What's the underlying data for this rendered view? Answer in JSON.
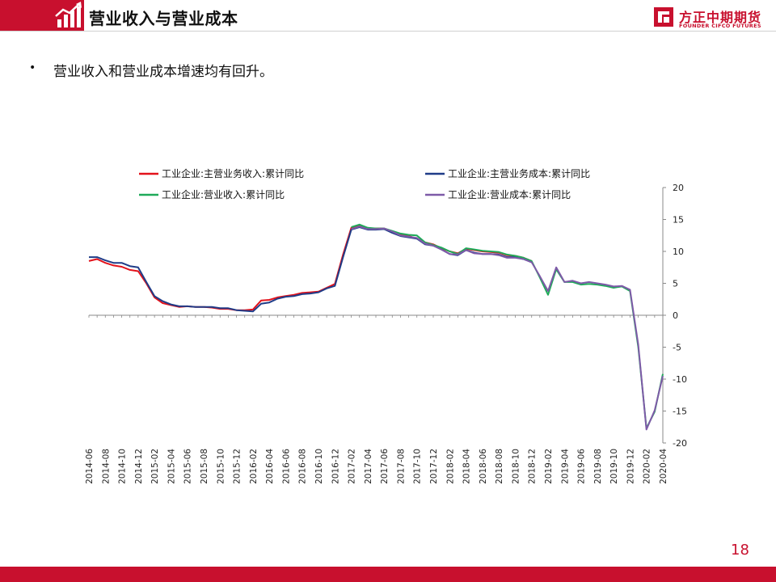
{
  "header": {
    "title": "营业收入与营业成本",
    "logo_cn": "方正中期期货",
    "logo_en": "FOUNDER CIFCO FUTURES"
  },
  "bullet": {
    "text": "营业收入和营业成本增速均有回升。"
  },
  "page_number": "18",
  "colors": {
    "brand_red": "#c8102e",
    "series_main_revenue": "#e3121b",
    "series_main_cost": "#1f3c88",
    "series_revenue": "#1faa59",
    "series_cost": "#7e5aa8"
  },
  "chart_data": {
    "type": "line",
    "title": "",
    "xlabel": "",
    "ylabel": "",
    "ylim": [
      -20,
      20
    ],
    "yticks": [
      20,
      15,
      10,
      5,
      0,
      -5,
      -10,
      -15,
      -20
    ],
    "y_axis_side": "right",
    "grid": false,
    "legend": "top",
    "x": [
      "2014-06",
      "2014-07",
      "2014-08",
      "2014-09",
      "2014-10",
      "2014-11",
      "2014-12",
      "2015-01",
      "2015-02",
      "2015-03",
      "2015-04",
      "2015-05",
      "2015-06",
      "2015-07",
      "2015-08",
      "2015-09",
      "2015-10",
      "2015-11",
      "2015-12",
      "2016-01",
      "2016-02",
      "2016-03",
      "2016-04",
      "2016-05",
      "2016-06",
      "2016-07",
      "2016-08",
      "2016-09",
      "2016-10",
      "2016-11",
      "2016-12",
      "2017-01",
      "2017-02",
      "2017-03",
      "2017-04",
      "2017-05",
      "2017-06",
      "2017-07",
      "2017-08",
      "2017-09",
      "2017-10",
      "2017-11",
      "2017-12",
      "2018-01",
      "2018-02",
      "2018-03",
      "2018-04",
      "2018-05",
      "2018-06",
      "2018-07",
      "2018-08",
      "2018-09",
      "2018-10",
      "2018-11",
      "2018-12",
      "2019-01",
      "2019-02",
      "2019-03",
      "2019-04",
      "2019-05",
      "2019-06",
      "2019-07",
      "2019-08",
      "2019-09",
      "2019-10",
      "2019-11",
      "2019-12",
      "2020-01",
      "2020-02",
      "2020-03",
      "2020-04"
    ],
    "x_tick_labels": [
      "2014-06",
      "2014-08",
      "2014-10",
      "2014-12",
      "2015-02",
      "2015-04",
      "2015-06",
      "2015-08",
      "2015-10",
      "2015-12",
      "2016-02",
      "2016-04",
      "2016-06",
      "2016-08",
      "2016-10",
      "2016-12",
      "2017-02",
      "2017-04",
      "2017-06",
      "2017-08",
      "2017-10",
      "2017-12",
      "2018-02",
      "2018-04",
      "2018-06",
      "2018-08",
      "2018-10",
      "2018-12",
      "2019-02",
      "2019-04",
      "2019-06",
      "2019-08",
      "2019-10",
      "2019-12",
      "2020-02",
      "2020-04"
    ],
    "series": [
      {
        "name": "工业企业:主营业务收入:累计同比",
        "color": "#e3121b",
        "values": [
          8.5,
          8.8,
          8.2,
          7.8,
          7.6,
          7.1,
          6.9,
          5.0,
          2.8,
          1.9,
          1.6,
          1.3,
          1.4,
          1.3,
          1.3,
          1.2,
          1.0,
          1.0,
          0.8,
          0.8,
          0.9,
          2.3,
          2.4,
          2.8,
          3.0,
          3.2,
          3.5,
          3.6,
          3.7,
          4.3,
          4.9,
          9.5,
          13.7,
          14.0,
          13.6,
          13.6,
          13.6,
          13.1,
          12.7,
          12.4,
          12.0,
          11.4,
          11.1,
          10.5,
          10.0,
          9.7,
          10.4,
          10.2,
          10.0,
          9.9,
          9.8,
          9.4,
          9.3,
          9.0,
          8.5,
          null,
          null,
          null,
          null,
          null,
          null,
          null,
          null,
          null,
          null,
          null,
          null,
          null,
          null,
          null,
          null
        ]
      },
      {
        "name": "工业企业:主营业务成本:累计同比",
        "color": "#1f3c88",
        "values": [
          9.1,
          9.1,
          8.6,
          8.2,
          8.2,
          7.7,
          7.5,
          5.2,
          3.0,
          2.2,
          1.7,
          1.4,
          1.4,
          1.3,
          1.3,
          1.3,
          1.1,
          1.1,
          0.8,
          0.7,
          0.6,
          1.8,
          2.0,
          2.6,
          2.9,
          3.0,
          3.3,
          3.4,
          3.6,
          4.2,
          4.6,
          9.1,
          13.4,
          13.8,
          13.4,
          13.4,
          13.5,
          12.9,
          12.4,
          12.2,
          12.0,
          11.1,
          10.9,
          10.3,
          9.6,
          9.4,
          10.2,
          9.8,
          9.6,
          9.6,
          9.5,
          9.1,
          9.1,
          8.8,
          8.3,
          null,
          null,
          null,
          null,
          null,
          null,
          null,
          null,
          null,
          null,
          null,
          null,
          null,
          null,
          null,
          null
        ]
      },
      {
        "name": "工业企业:营业收入:累计同比",
        "color": "#1faa59",
        "values": [
          null,
          null,
          null,
          null,
          null,
          null,
          null,
          null,
          null,
          null,
          null,
          null,
          null,
          null,
          null,
          null,
          null,
          null,
          null,
          null,
          null,
          null,
          null,
          null,
          null,
          null,
          null,
          null,
          null,
          null,
          null,
          null,
          13.8,
          14.2,
          13.7,
          13.6,
          13.6,
          13.2,
          12.8,
          12.6,
          12.5,
          11.4,
          11.0,
          10.6,
          10.0,
          9.6,
          10.5,
          10.3,
          10.1,
          10.0,
          9.9,
          9.5,
          9.3,
          9.0,
          8.5,
          5.9,
          3.2,
          7.2,
          5.2,
          5.2,
          4.8,
          4.9,
          4.8,
          4.6,
          4.3,
          4.5,
          3.8,
          -5.0,
          -17.7,
          -15.1,
          -9.2
        ]
      },
      {
        "name": "工业企业:营业成本:累计同比",
        "color": "#7e5aa8",
        "values": [
          null,
          null,
          null,
          null,
          null,
          null,
          null,
          null,
          null,
          null,
          null,
          null,
          null,
          null,
          null,
          null,
          null,
          null,
          null,
          null,
          null,
          null,
          null,
          null,
          null,
          null,
          null,
          null,
          null,
          null,
          null,
          null,
          13.5,
          13.9,
          13.5,
          13.5,
          13.6,
          13.1,
          12.5,
          12.3,
          12.1,
          11.2,
          10.9,
          10.3,
          9.6,
          9.5,
          10.2,
          9.7,
          9.6,
          9.6,
          9.4,
          9.0,
          9.0,
          8.8,
          8.3,
          6.1,
          3.8,
          7.5,
          5.2,
          5.4,
          5.0,
          5.2,
          5.0,
          4.8,
          4.5,
          4.6,
          4.0,
          -4.6,
          -17.9,
          -14.9,
          -9.5
        ]
      }
    ]
  }
}
